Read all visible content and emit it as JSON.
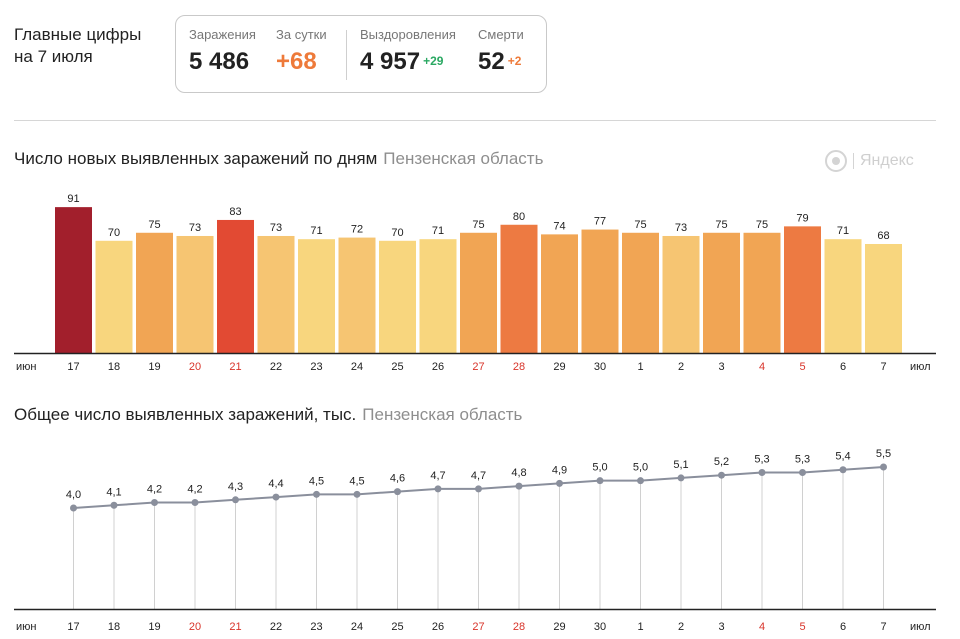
{
  "header": {
    "title_line1": "Главные цифры",
    "title_line2": "на 7 июля"
  },
  "stats": {
    "infections_label": "Заражения",
    "infections_value": "5 486",
    "day_label": "За сутки",
    "day_value": "+68",
    "recoveries_label": "Выздоровления",
    "recoveries_value": "4 957",
    "recoveries_delta": "+29",
    "deaths_label": "Смерти",
    "deaths_value": "52",
    "deaths_delta": "+2"
  },
  "logo": {
    "text": "Яндекс",
    "icon": "yandex-logo-icon"
  },
  "chart_data": [
    {
      "type": "bar",
      "title": "Число новых выявленных заражений по дням",
      "subtitle": "Пензенская область",
      "categories": [
        "17",
        "18",
        "19",
        "20",
        "21",
        "22",
        "23",
        "24",
        "25",
        "26",
        "27",
        "28",
        "29",
        "30",
        "1",
        "2",
        "3",
        "4",
        "5",
        "6",
        "7"
      ],
      "values": [
        91,
        70,
        75,
        73,
        83,
        73,
        71,
        72,
        70,
        71,
        75,
        80,
        74,
        77,
        75,
        73,
        75,
        75,
        79,
        71,
        68
      ],
      "weekend_indices": [
        3,
        4,
        10,
        11,
        17,
        18
      ],
      "axis_start_label": "июн",
      "axis_end_label": "июл",
      "ylim": [
        0,
        100
      ],
      "grid": false
    },
    {
      "type": "line",
      "title": "Общее число выявленных заражений, тыс.",
      "subtitle": "Пензенская область",
      "categories": [
        "17",
        "18",
        "19",
        "20",
        "21",
        "22",
        "23",
        "24",
        "25",
        "26",
        "27",
        "28",
        "29",
        "30",
        "1",
        "2",
        "3",
        "4",
        "5",
        "6",
        "7"
      ],
      "values": [
        4.0,
        4.1,
        4.2,
        4.2,
        4.3,
        4.4,
        4.5,
        4.5,
        4.6,
        4.7,
        4.7,
        4.8,
        4.9,
        5.0,
        5.0,
        5.1,
        5.2,
        5.3,
        5.3,
        5.4,
        5.5
      ],
      "labels": [
        "4,0",
        "4,1",
        "4,2",
        "4,2",
        "4,3",
        "4,4",
        "4,5",
        "4,5",
        "4,6",
        "4,7",
        "4,7",
        "4,8",
        "4,9",
        "5,0",
        "5,0",
        "5,1",
        "5,2",
        "5,3",
        "5,3",
        "5,4",
        "5,5"
      ],
      "weekend_indices": [
        3,
        4,
        10,
        11,
        17,
        18
      ],
      "axis_start_label": "июн",
      "axis_end_label": "июл",
      "ylim": [
        0,
        5.6
      ],
      "grid": false
    }
  ],
  "colors": {
    "bar_levels": [
      "#f8d67e",
      "#f6c572",
      "#f1a554",
      "#ed7a42",
      "#e24a33",
      "#a21f2c"
    ],
    "line": "#8a8f9c",
    "weekend_tick": "#d8342a",
    "axis": "#222222"
  }
}
